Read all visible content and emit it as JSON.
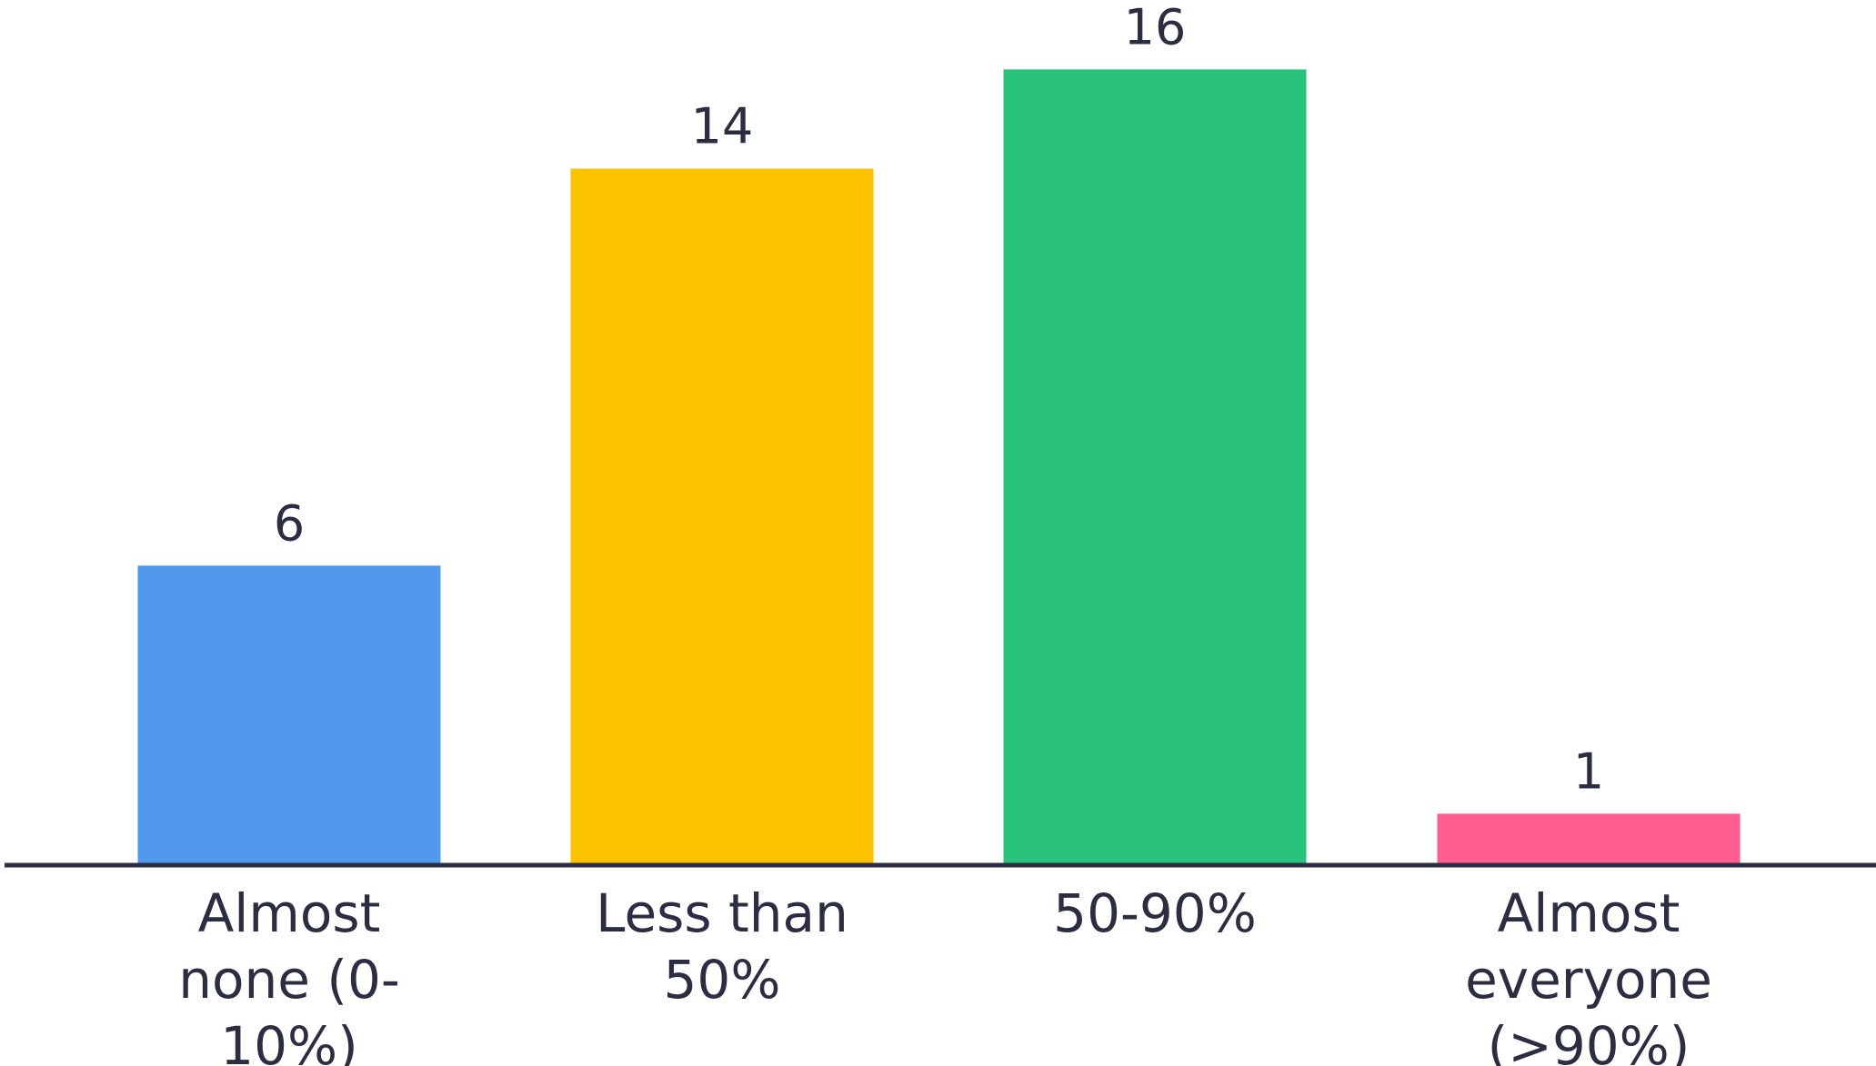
{
  "chart_data": {
    "type": "bar",
    "categories": [
      [
        "Almost",
        "none (0-",
        "10%)"
      ],
      [
        "Less than",
        "50%"
      ],
      [
        "50-90%"
      ],
      [
        "Almost",
        "everyone",
        "(>90%)"
      ]
    ],
    "values": [
      6,
      14,
      16,
      1
    ],
    "colors": [
      "#5099EC",
      "#FCC200",
      "#2AC37E",
      "#FF5D8F"
    ],
    "axis_color": "#2B2D42",
    "grid": false,
    "legend": "none"
  }
}
